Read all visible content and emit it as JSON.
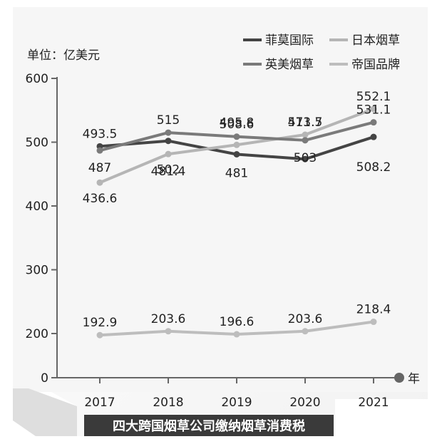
{
  "chart_data": {
    "type": "line",
    "title": "",
    "caption": "四大跨国烟草公司缴纳烟草消费税",
    "unit_label": "单位：亿美元",
    "xlabel": "年",
    "ylabel": "",
    "ylim": [
      0,
      600
    ],
    "yticks": [
      0,
      200,
      300,
      400,
      500,
      600
    ],
    "categories": [
      "2017",
      "2018",
      "2019",
      "2020",
      "2021"
    ],
    "grid": false,
    "legend_position": "top-right",
    "series": [
      {
        "name": "菲莫国际",
        "color": "#444444",
        "values": [
          493.5,
          502,
          481,
          473.5,
          508.2
        ],
        "labels": [
          "493.5",
          "502",
          "481",
          "473.5",
          "508.2"
        ]
      },
      {
        "name": "日本烟草",
        "color": "#b5b5b5",
        "values": [
          436.6,
          481.4,
          495.8,
          511.7,
          552.1
        ],
        "labels": [
          "436.6",
          "481.4",
          "495.8",
          "511.7",
          "552.1"
        ]
      },
      {
        "name": "英美烟草",
        "color": "#7a7a7a",
        "values": [
          487,
          515,
          508.6,
          503,
          531.1
        ],
        "labels": [
          "487",
          "515",
          "508.6",
          "503",
          "531.1"
        ]
      },
      {
        "name": "帝国品牌",
        "color": "#bdbdbd",
        "values": [
          192.9,
          203.6,
          196.6,
          203.6,
          218.4
        ],
        "labels": [
          "192.9",
          "203.6",
          "196.6",
          "203.6",
          "218.4"
        ]
      }
    ]
  }
}
